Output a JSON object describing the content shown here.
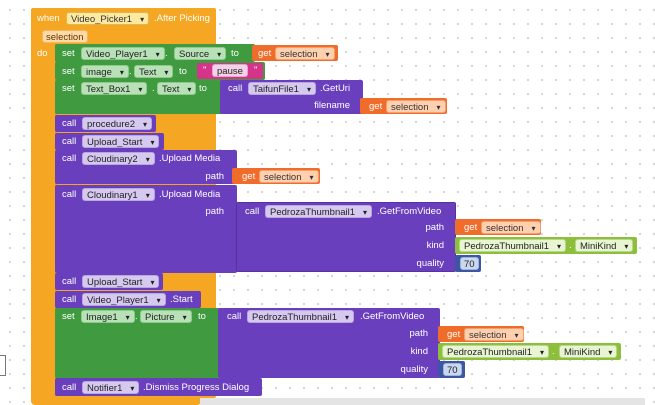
{
  "event": {
    "when": "when",
    "component": "Video_Picker1",
    "event_name": ".After Picking",
    "param": "selection",
    "do": "do"
  },
  "kw": {
    "set": "set",
    "to": "to",
    "get": "get",
    "call": "call"
  },
  "stmt1": {
    "component": "Video_Player1",
    "property": "Source",
    "get_var": "selection"
  },
  "stmt2": {
    "component": "image",
    "property": "Text",
    "string_value": "pause"
  },
  "stmt3": {
    "component": "Text_Box1",
    "property": "Text",
    "call_component": "TaifunFile1",
    "method": ".GetUri",
    "arg_label": "filename",
    "get_var": "selection"
  },
  "stmt4": {
    "procedure": "procedure2"
  },
  "stmt5": {
    "procedure": "Upload_Start"
  },
  "stmt6": {
    "component": "Cloudinary2",
    "method": ".Upload Media",
    "arg_label": "path",
    "get_var": "selection"
  },
  "stmt7": {
    "component": "Cloudinary1",
    "method": ".Upload Media",
    "arg_label": "path",
    "inner_component": "PedrozaThumbnail1",
    "inner_method": ".GetFromVideo",
    "path_label": "path",
    "get_var": "selection",
    "kind_label": "kind",
    "kind_component": "PedrozaThumbnail1",
    "kind_value": "MiniKind",
    "quality_label": "quality",
    "quality_value": "70"
  },
  "stmt8": {
    "procedure": "Upload_Start"
  },
  "stmt9": {
    "component": "Video_Player1",
    "method": ".Start"
  },
  "stmt10": {
    "component": "Image1",
    "property": "Picture",
    "inner_component": "PedrozaThumbnail1",
    "inner_method": ".GetFromVideo",
    "path_label": "path",
    "get_var": "selection",
    "kind_label": "kind",
    "kind_component": "PedrozaThumbnail1",
    "kind_value": "MiniKind",
    "quality_label": "quality",
    "quality_value": "70"
  },
  "stmt11": {
    "component": "Notifier1",
    "method": ".Dismiss Progress Dialog"
  },
  "colors": {
    "event": "#f5a623",
    "setter": "#3f9a40",
    "call": "#6a3fbd",
    "getter": "#ef6c2a",
    "text": "#d6338a",
    "helper": "#8dbe3c",
    "number": "#3d55a3"
  }
}
